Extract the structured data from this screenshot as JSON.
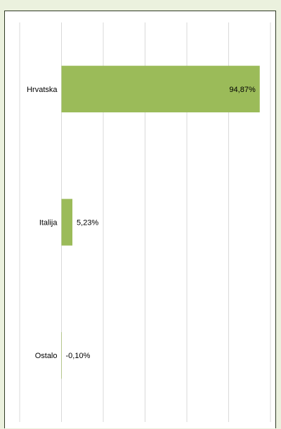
{
  "chart_data": {
    "type": "bar",
    "orientation": "horizontal",
    "categories": [
      "Hrvatska",
      "Italija",
      "Ostalo"
    ],
    "values": [
      94.87,
      5.23,
      -0.1
    ],
    "data_labels": [
      "94,87%",
      "5,23%",
      "-0,10%"
    ],
    "title": "",
    "xlabel": "",
    "ylabel": "",
    "xlim": [
      -20,
      100
    ],
    "gridlines": [
      -20,
      0,
      20,
      40,
      60,
      80,
      100
    ],
    "grid": true,
    "legend": "none",
    "bar_color": "#9bbb59",
    "grid_color": "#d9d9d9",
    "background_color": "#ebf1de",
    "border_color": "#2f3a24"
  }
}
